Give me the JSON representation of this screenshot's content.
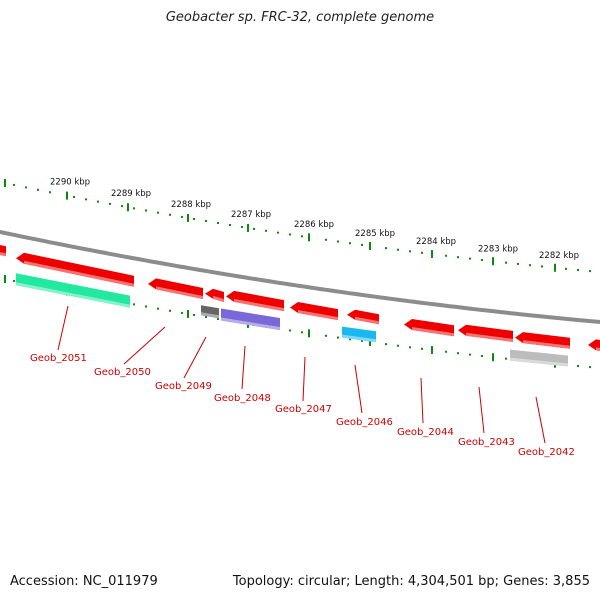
{
  "title": "Geobacter sp. FRC-32, complete genome",
  "footer": {
    "accession": "Accession: NC_011979",
    "summary": "Topology: circular; Length: 4,304,501 bp; Genes: 3,855"
  },
  "colors": {
    "backbone": "#8c8c8c",
    "tick": "#0a8a0a",
    "label": "#cc0000",
    "gene_red": "#ee0000",
    "gene_green": "#22e8a0",
    "gene_dark": "#666666",
    "gene_purple": "#7a68d8",
    "gene_cyan": "#19b8f0",
    "gene_grey": "#bcbcbc"
  },
  "scale_labels": [
    "2290 kbp",
    "2289 kbp",
    "2288 kbp",
    "2287 kbp",
    "2286 kbp",
    "2285 kbp",
    "2284 kbp",
    "2283 kbp",
    "2282 kbp"
  ],
  "gene_labels": [
    "Geob_2051",
    "Geob_2050",
    "Geob_2049",
    "Geob_2048",
    "Geob_2047",
    "Geob_2046",
    "Geob_2044",
    "Geob_2043",
    "Geob_2042"
  ]
}
